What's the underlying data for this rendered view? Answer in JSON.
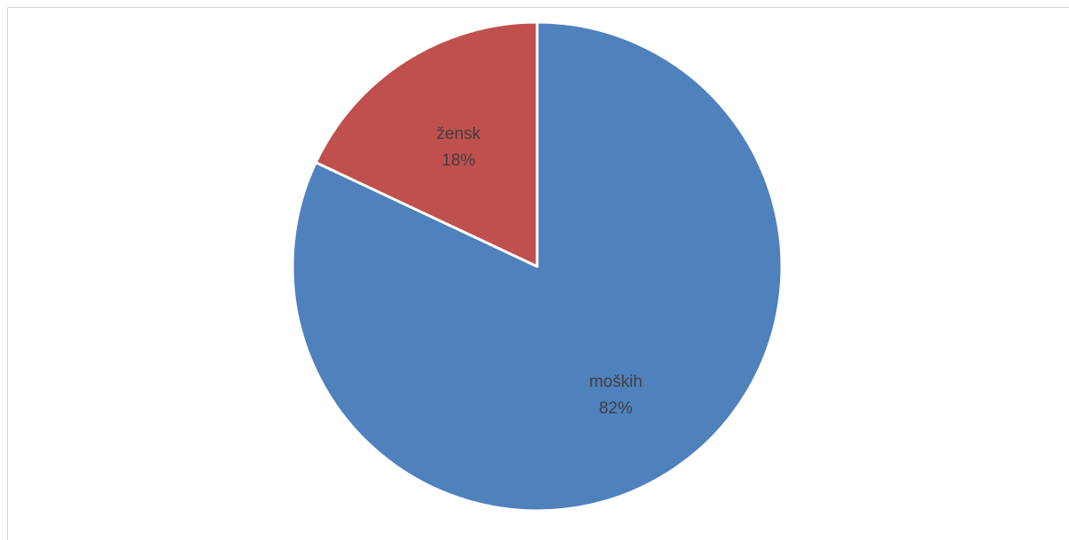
{
  "chart_data": {
    "type": "pie",
    "slices": [
      {
        "label": "moških",
        "value": 82,
        "display_value": "82%",
        "color": "#4f81bd"
      },
      {
        "label": "žensk",
        "value": 18,
        "display_value": "18%",
        "color": "#c0504d"
      }
    ],
    "start_angle": "12 o'clock",
    "direction": "clockwise",
    "legend": "none",
    "data_labels": "inside slices: category name and percentage"
  }
}
